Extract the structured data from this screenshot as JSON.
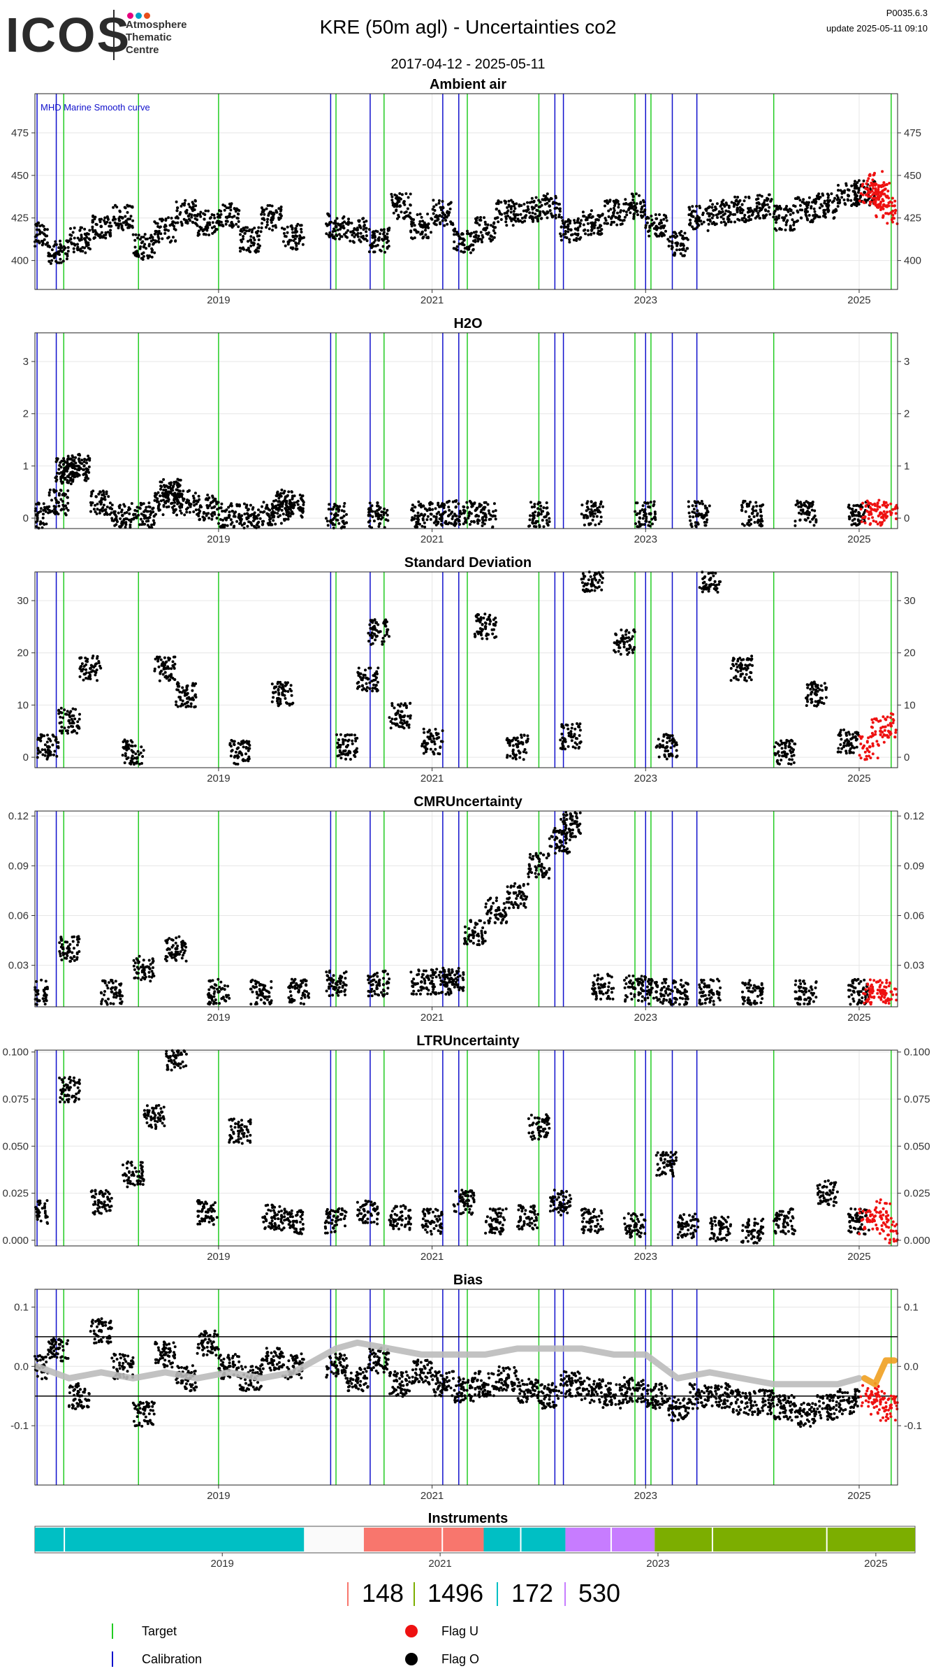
{
  "header": {
    "logo_text": "ICOS",
    "logo_lines": [
      "Atmosphere",
      "Thematic",
      "Centre"
    ],
    "logo_dot_colors": [
      "#e6007e",
      "#00a0c6",
      "#e94e1b"
    ],
    "title": "KRE  (50m agl) - Uncertainties co2",
    "version": "P0035.6.3",
    "update": "update  2025-05-11 09:10",
    "date_range": "2017-04-12 - 2025-05-11"
  },
  "colors": {
    "target": "#22cc22",
    "calibration": "#1010cc",
    "flag_u": "#ee1111",
    "flag_o": "#000000",
    "smooth": "#bbbbbb",
    "smooth_recent": "#f0a020",
    "mhd_label": "#1010cc"
  },
  "x_ticks": [
    "2019",
    "2021",
    "2023",
    "2025"
  ],
  "chart_data": [
    {
      "type": "scatter",
      "title": "Ambient air",
      "annotation": "MHD Marine Smooth curve",
      "y_ticks": [
        400,
        425,
        450,
        475
      ],
      "ylim": [
        383,
        498
      ],
      "xlim": [
        2017.28,
        2025.36
      ],
      "series": [
        {
          "name": "Flag O",
          "x": [
            2017.3,
            2017.5,
            2017.7,
            2017.9,
            2018.1,
            2018.3,
            2018.5,
            2018.7,
            2018.9,
            2019.1,
            2019.3,
            2019.5,
            2019.7,
            2020.1,
            2020.3,
            2020.5,
            2020.7,
            2020.9,
            2021.1,
            2021.3,
            2021.5,
            2021.7,
            2021.9,
            2022.1,
            2022.3,
            2022.5,
            2022.7,
            2022.9,
            2023.1,
            2023.3,
            2023.5,
            2023.7,
            2023.9,
            2024.1,
            2024.3,
            2024.5,
            2024.7,
            2024.9,
            2025.05
          ],
          "y": [
            415,
            405,
            412,
            420,
            425,
            408,
            418,
            428,
            422,
            426,
            412,
            425,
            414,
            420,
            418,
            412,
            432,
            420,
            428,
            412,
            418,
            428,
            430,
            432,
            418,
            422,
            428,
            432,
            420,
            410,
            425,
            428,
            430,
            432,
            425,
            430,
            432,
            438,
            440
          ]
        },
        {
          "name": "Flag U",
          "x": [
            2025.1,
            2025.15,
            2025.2,
            2025.25,
            2025.3
          ],
          "y": [
            440,
            445,
            438,
            432,
            428
          ]
        }
      ]
    },
    {
      "type": "scatter",
      "title": "H2O",
      "y_ticks": [
        0,
        1,
        2,
        3
      ],
      "ylim": [
        -0.2,
        3.55
      ],
      "xlim": [
        2017.28,
        2025.36
      ],
      "series": [
        {
          "name": "Flag O",
          "x": [
            2017.3,
            2017.5,
            2017.55,
            2017.6,
            2017.7,
            2017.9,
            2018.1,
            2018.3,
            2018.5,
            2018.55,
            2018.7,
            2018.9,
            2019.1,
            2019.3,
            2019.5,
            2019.6,
            2019.7,
            2020.1,
            2020.5,
            2020.9,
            2021.1,
            2021.3,
            2021.5,
            2022.0,
            2022.5,
            2023.0,
            2023.5,
            2024.0,
            2024.5,
            2025.0
          ],
          "y": [
            0.05,
            0.3,
            0.9,
            1.0,
            0.95,
            0.3,
            0.05,
            0.05,
            0.3,
            0.5,
            0.3,
            0.2,
            0.05,
            0.05,
            0.1,
            0.3,
            0.2,
            0.05,
            0.06,
            0.07,
            0.08,
            0.1,
            0.06,
            0.07,
            0.08,
            0.08,
            0.08,
            0.09,
            0.09,
            0.09
          ]
        },
        {
          "name": "Flag U",
          "x": [
            2025.1,
            2025.2,
            2025.3
          ],
          "y": [
            0.1,
            0.1,
            0.1
          ]
        }
      ]
    },
    {
      "type": "scatter",
      "title": "Standard Deviation",
      "y_ticks": [
        0,
        10,
        20,
        30
      ],
      "ylim": [
        -2,
        35.5
      ],
      "xlim": [
        2017.28,
        2025.36
      ],
      "series": [
        {
          "name": "Flag O",
          "x": [
            2017.4,
            2017.6,
            2017.8,
            2018.2,
            2018.5,
            2018.7,
            2019.2,
            2019.6,
            2020.2,
            2020.4,
            2020.5,
            2020.7,
            2021.0,
            2021.5,
            2021.8,
            2022.3,
            2022.5,
            2022.8,
            2023.2,
            2023.6,
            2023.9,
            2024.3,
            2024.6,
            2024.9
          ],
          "y": [
            2,
            7,
            17,
            1,
            17,
            12,
            1,
            12,
            2,
            15,
            24,
            8,
            3,
            25,
            2,
            4,
            34,
            22,
            2,
            34,
            17,
            1,
            12,
            3
          ]
        },
        {
          "name": "Flag U",
          "x": [
            2025.1,
            2025.2,
            2025.3
          ],
          "y": [
            2,
            5,
            6
          ]
        }
      ]
    },
    {
      "type": "scatter",
      "title": "CMRUncertainty",
      "y_ticks": [
        0.03,
        0.06,
        0.09,
        0.12
      ],
      "ylim": [
        0.005,
        0.123
      ],
      "xlim": [
        2017.28,
        2025.36
      ],
      "series": [
        {
          "name": "Flag O",
          "x": [
            2017.3,
            2017.6,
            2018.0,
            2018.3,
            2018.6,
            2019.0,
            2019.4,
            2019.75,
            2020.1,
            2020.5,
            2020.9,
            2021.1,
            2021.2,
            2021.4,
            2021.6,
            2021.8,
            2022.0,
            2022.2,
            2022.3,
            2022.6,
            2022.9,
            2023.1,
            2023.3,
            2023.6,
            2024.0,
            2024.5,
            2025.0
          ],
          "y": [
            0.014,
            0.04,
            0.014,
            0.028,
            0.04,
            0.014,
            0.014,
            0.014,
            0.019,
            0.019,
            0.02,
            0.02,
            0.021,
            0.05,
            0.063,
            0.072,
            0.09,
            0.105,
            0.115,
            0.017,
            0.016,
            0.014,
            0.014,
            0.014,
            0.014,
            0.014,
            0.014
          ]
        },
        {
          "name": "Flag U",
          "x": [
            2025.1,
            2025.2,
            2025.3
          ],
          "y": [
            0.014,
            0.014,
            0.014
          ]
        }
      ]
    },
    {
      "type": "scatter",
      "title": "LTRUncertainty",
      "y_ticks": [
        0.0,
        0.025,
        0.05,
        0.075,
        0.1
      ],
      "y_tick_labels": [
        "0.000",
        "0.025",
        "0.050",
        "0.075",
        "0.100"
      ],
      "ylim": [
        -0.003,
        0.101
      ],
      "xlim": [
        2017.28,
        2025.36
      ],
      "series": [
        {
          "name": "Flag O",
          "x": [
            2017.3,
            2017.6,
            2017.9,
            2018.2,
            2018.4,
            2018.6,
            2018.9,
            2019.2,
            2019.5,
            2019.7,
            2020.1,
            2020.4,
            2020.7,
            2021.0,
            2021.3,
            2021.6,
            2021.9,
            2022.0,
            2022.2,
            2022.5,
            2022.9,
            2023.2,
            2023.4,
            2023.7,
            2024.0,
            2024.3,
            2024.7,
            2025.0
          ],
          "y": [
            0.015,
            0.08,
            0.02,
            0.035,
            0.065,
            0.097,
            0.015,
            0.058,
            0.012,
            0.01,
            0.01,
            0.015,
            0.012,
            0.01,
            0.02,
            0.01,
            0.012,
            0.06,
            0.02,
            0.01,
            0.008,
            0.04,
            0.008,
            0.006,
            0.005,
            0.01,
            0.025,
            0.01
          ]
        },
        {
          "name": "Flag U",
          "x": [
            2025.1,
            2025.2,
            2025.3
          ],
          "y": [
            0.01,
            0.015,
            0.005
          ]
        }
      ]
    },
    {
      "type": "scatter",
      "title": "Bias",
      "y_ticks": [
        -0.1,
        0.0,
        0.1
      ],
      "y_tick_labels": [
        "-0.1",
        "0.0",
        "0.1"
      ],
      "ylim": [
        -0.2,
        0.13
      ],
      "hlines": [
        0.05,
        -0.05
      ],
      "xlim": [
        2017.28,
        2025.36
      ],
      "series": [
        {
          "name": "Flag O",
          "x": [
            2017.3,
            2017.5,
            2017.7,
            2017.9,
            2018.1,
            2018.3,
            2018.5,
            2018.7,
            2018.9,
            2019.1,
            2019.3,
            2019.5,
            2019.7,
            2020.1,
            2020.3,
            2020.5,
            2020.7,
            2020.9,
            2021.1,
            2021.3,
            2021.5,
            2021.7,
            2021.9,
            2022.1,
            2022.3,
            2022.5,
            2022.7,
            2022.9,
            2023.1,
            2023.3,
            2023.5,
            2023.7,
            2023.9,
            2024.1,
            2024.3,
            2024.5,
            2024.7,
            2024.9
          ],
          "y": [
            0.0,
            0.03,
            -0.05,
            0.06,
            0.0,
            -0.08,
            0.02,
            -0.02,
            0.04,
            0.0,
            -0.02,
            0.01,
            0.0,
            0.0,
            -0.02,
            0.01,
            -0.03,
            -0.01,
            -0.03,
            -0.04,
            -0.03,
            -0.02,
            -0.04,
            -0.05,
            -0.03,
            -0.04,
            -0.05,
            -0.04,
            -0.05,
            -0.07,
            -0.05,
            -0.05,
            -0.06,
            -0.06,
            -0.07,
            -0.08,
            -0.07,
            -0.06
          ]
        },
        {
          "name": "Flag U",
          "x": [
            2025.1,
            2025.2,
            2025.3
          ],
          "y": [
            -0.05,
            -0.06,
            -0.07
          ]
        },
        {
          "name": "MHD Marine Smooth curve",
          "x": [
            2017.3,
            2017.6,
            2017.9,
            2018.2,
            2018.5,
            2018.8,
            2019.1,
            2019.4,
            2019.7,
            2020.1,
            2020.3,
            2020.6,
            2020.9,
            2021.2,
            2021.5,
            2021.8,
            2022.1,
            2022.4,
            2022.7,
            2023.0,
            2023.3,
            2023.6,
            2023.9,
            2024.2,
            2024.5,
            2024.8,
            2025.0
          ],
          "y": [
            0.0,
            -0.02,
            -0.01,
            -0.02,
            -0.01,
            -0.02,
            -0.01,
            -0.02,
            -0.01,
            0.03,
            0.04,
            0.03,
            0.02,
            0.02,
            0.02,
            0.03,
            0.03,
            0.03,
            0.02,
            0.02,
            -0.02,
            -0.01,
            -0.02,
            -0.03,
            -0.03,
            -0.03,
            -0.02
          ]
        },
        {
          "name": "Recent smooth",
          "x": [
            2025.05,
            2025.15,
            2025.25,
            2025.33
          ],
          "y": [
            -0.02,
            -0.03,
            0.01,
            0.01
          ]
        }
      ]
    }
  ],
  "target_lines": [
    2017.55,
    2018.25,
    2019.0,
    2020.1,
    2020.55,
    2021.33,
    2022.0,
    2022.9,
    2023.05,
    2024.2,
    2025.3
  ],
  "calibration_lines": [
    2017.3,
    2017.48,
    2020.05,
    2020.42,
    2021.1,
    2021.25,
    2022.15,
    2022.23,
    2023.0,
    2023.25,
    2023.48
  ],
  "instruments": {
    "title": "Instruments",
    "x_ticks": [
      "2019",
      "2021",
      "2023",
      "2025"
    ],
    "segments": [
      {
        "id": "172",
        "from": 2017.28,
        "to": 2019.75
      },
      {
        "id": "148",
        "from": 2020.3,
        "to": 2021.4
      },
      {
        "id": "172",
        "from": 2021.4,
        "to": 2022.15
      },
      {
        "id": "530",
        "from": 2022.15,
        "to": 2022.97
      },
      {
        "id": "1496",
        "from": 2022.97,
        "to": 2025.36
      }
    ],
    "legend": [
      {
        "id": "148",
        "color": "#f8766d"
      },
      {
        "id": "1496",
        "color": "#7cae00"
      },
      {
        "id": "172",
        "color": "#00bfc4"
      },
      {
        "id": "530",
        "color": "#c77cff"
      }
    ]
  },
  "legend": {
    "target": "Target",
    "calibration": "Calibration",
    "flag_u": "Flag U",
    "flag_o": "Flag O"
  }
}
